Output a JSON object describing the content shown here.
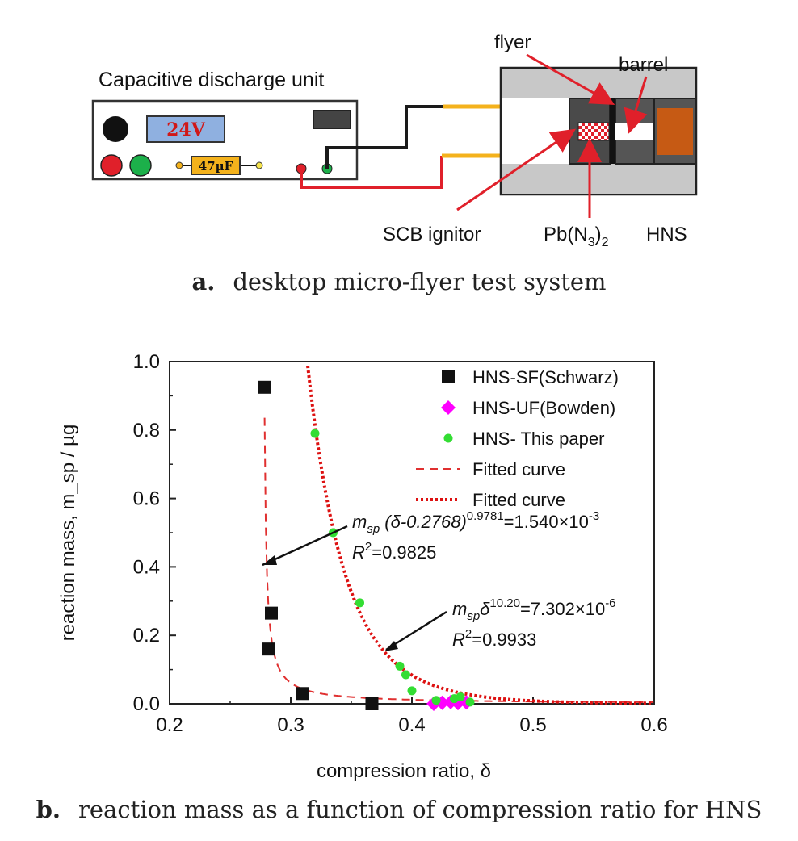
{
  "diagram": {
    "unit_title": "Capacitive discharge unit",
    "voltage_label": "24V",
    "capacitor_label": "47µF",
    "labels": {
      "flyer": "flyer",
      "barrel": "barrel",
      "scb": "SCB ignitor",
      "pb_base": "Pb(N",
      "pb_sub1": "3",
      "pb_close": ")",
      "pb_sub2": "2",
      "hns": "HNS"
    },
    "colors": {
      "wire_red": "#e0202a",
      "wire_black": "#1a1a1a",
      "wire_yellow": "#f4b21c",
      "hns_block": "#c65a14",
      "display": "#8fb0e0"
    }
  },
  "captions": {
    "a_letter": "a.",
    "a_text": "desktop micro-flyer test system",
    "b_letter": "b.",
    "b_text": "reaction mass as a function of compression ratio for HNS"
  },
  "chart_data": {
    "type": "scatter",
    "xlabel": "compression ratio, δ",
    "ylabel": "reaction mass, m_sp / µg",
    "xlim": [
      0.2,
      0.6
    ],
    "ylim": [
      0.0,
      1.0
    ],
    "xticks": [
      "0.2",
      "0.3",
      "0.4",
      "0.5",
      "0.6"
    ],
    "yticks": [
      "0.0",
      "0.2",
      "0.4",
      "0.6",
      "0.8",
      "1.0"
    ],
    "grid": false,
    "legend_position": "top-right",
    "legend": [
      "HNS-SF(Schwarz)",
      "HNS-UF(Bowden)",
      "HNS- This paper",
      "Fitted curve",
      "Fitted curve"
    ],
    "series": [
      {
        "name": "HNS-SF(Schwarz)",
        "marker": "square",
        "color": "#111111",
        "points": [
          [
            0.278,
            0.925
          ],
          [
            0.284,
            0.265
          ],
          [
            0.282,
            0.16
          ],
          [
            0.31,
            0.03
          ],
          [
            0.367,
            0.0
          ]
        ]
      },
      {
        "name": "HNS-UF(Bowden)",
        "marker": "diamond",
        "color": "#ff00ff",
        "points": [
          [
            0.418,
            0.0
          ],
          [
            0.425,
            0.003
          ],
          [
            0.432,
            0.005
          ],
          [
            0.438,
            0.002
          ],
          [
            0.445,
            0.004
          ]
        ]
      },
      {
        "name": "HNS- This paper",
        "marker": "circle",
        "color": "#33dd33",
        "points": [
          [
            0.32,
            0.79
          ],
          [
            0.335,
            0.5
          ],
          [
            0.357,
            0.295
          ],
          [
            0.39,
            0.11
          ],
          [
            0.395,
            0.085
          ],
          [
            0.4,
            0.038
          ],
          [
            0.42,
            0.01
          ],
          [
            0.435,
            0.015
          ],
          [
            0.44,
            0.02
          ],
          [
            0.448,
            0.005
          ]
        ]
      }
    ],
    "fits": [
      {
        "style": "dashed",
        "color": "#e03030",
        "a": 0.2768,
        "exponent": 0.9781,
        "k": 0.00154
      },
      {
        "style": "dotted",
        "color": "#dd1111",
        "exponent": 10.2,
        "k": 7.302e-06
      }
    ],
    "annotations": {
      "eq1": {
        "m": "m",
        "sub": "sp",
        "mid": " (δ-0.2768)",
        "sup": "0.9781",
        "rhs": "=1.540×10",
        "rhs_sup": "-3",
        "r2": "R",
        "r2_sup": "2",
        "r2_val": "=0.9825"
      },
      "eq2": {
        "m": "m",
        "sub": "sp",
        "mid": "δ",
        "sup": "10.20",
        "rhs": "=7.302×10",
        "rhs_sup": "-6",
        "r2": "R",
        "r2_sup": "2",
        "r2_val": "=0.9933"
      }
    }
  }
}
